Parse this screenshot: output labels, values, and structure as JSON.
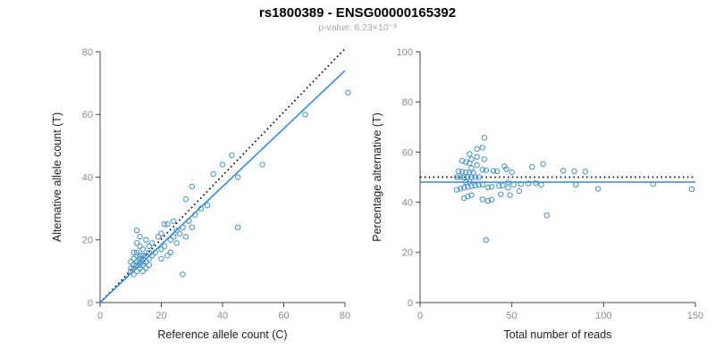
{
  "header": {
    "title": "rs1800389 - ENSG00000165392",
    "subtitle": "p-value: 6.23×10⁻³"
  },
  "colors": {
    "point": "#4292c6",
    "trend": "#2b8cee",
    "reference": "#000000",
    "axis": "#444444",
    "tick_text": "#8a8a8a",
    "axis_label": "#222222"
  },
  "chart_data": [
    {
      "type": "scatter",
      "name": "allele-count-scatter",
      "xlabel": "Reference allele count (C)",
      "ylabel": "Alternative allele count (T)",
      "xlim": [
        0,
        80
      ],
      "ylim": [
        0,
        80
      ],
      "xticks": [
        0,
        20,
        40,
        60,
        80
      ],
      "yticks": [
        0,
        20,
        40,
        60,
        80
      ],
      "points": [
        [
          10,
          10
        ],
        [
          10,
          11
        ],
        [
          10,
          13
        ],
        [
          11,
          9
        ],
        [
          11,
          11
        ],
        [
          11,
          12
        ],
        [
          11,
          14
        ],
        [
          11,
          16
        ],
        [
          12,
          10
        ],
        [
          12,
          12
        ],
        [
          12,
          13
        ],
        [
          12,
          15
        ],
        [
          12,
          16
        ],
        [
          12,
          19
        ],
        [
          12,
          23
        ],
        [
          13,
          11
        ],
        [
          13,
          12
        ],
        [
          13,
          13
        ],
        [
          13,
          14
        ],
        [
          13,
          15
        ],
        [
          13,
          18
        ],
        [
          13,
          21
        ],
        [
          14,
          10
        ],
        [
          14,
          12
        ],
        [
          14,
          13
        ],
        [
          14,
          14
        ],
        [
          14,
          15
        ],
        [
          14,
          17
        ],
        [
          15,
          11
        ],
        [
          15,
          13
        ],
        [
          15,
          15
        ],
        [
          15,
          20
        ],
        [
          16,
          12
        ],
        [
          16,
          14
        ],
        [
          16,
          16
        ],
        [
          16,
          18
        ],
        [
          17,
          15
        ],
        [
          17,
          19
        ],
        [
          18,
          16
        ],
        [
          19,
          21
        ],
        [
          20,
          14
        ],
        [
          20,
          17
        ],
        [
          20,
          22
        ],
        [
          21,
          18
        ],
        [
          21,
          25
        ],
        [
          22,
          15
        ],
        [
          22,
          25
        ],
        [
          23,
          16
        ],
        [
          23,
          20
        ],
        [
          24,
          21
        ],
        [
          24,
          26
        ],
        [
          25,
          19
        ],
        [
          25,
          23
        ],
        [
          26,
          22
        ],
        [
          27,
          9
        ],
        [
          27,
          24
        ],
        [
          28,
          21
        ],
        [
          28,
          33
        ],
        [
          29,
          26
        ],
        [
          30,
          24
        ],
        [
          30,
          37
        ],
        [
          31,
          28
        ],
        [
          33,
          30
        ],
        [
          35,
          31
        ],
        [
          37,
          41
        ],
        [
          40,
          44
        ],
        [
          43,
          47
        ],
        [
          45,
          24
        ],
        [
          45,
          40
        ],
        [
          53,
          44
        ],
        [
          67,
          60
        ],
        [
          81,
          67
        ]
      ],
      "lines": [
        {
          "name": "identity-line",
          "dashed": true,
          "color": "#000000",
          "points": [
            [
              0,
              0
            ],
            [
              80,
              81
            ]
          ]
        },
        {
          "name": "fit-line",
          "dashed": false,
          "color": "#2b8cee",
          "points": [
            [
              0,
              0
            ],
            [
              80,
              74
            ]
          ]
        }
      ]
    },
    {
      "type": "scatter",
      "name": "percentage-reads-scatter",
      "xlabel": "Total number of reads",
      "ylabel": "Percentage alternative (T)",
      "xlim": [
        0,
        150
      ],
      "ylim": [
        0,
        100
      ],
      "xticks": [
        0,
        50,
        100,
        150
      ],
      "yticks": [
        0,
        20,
        40,
        60,
        80,
        100
      ],
      "derive": "reads-percentage",
      "derive_note": "points derived from chart 0: x = C+T, y = 100·T/(C+T)",
      "lines": [
        {
          "name": "null-line",
          "dashed": true,
          "color": "#000000",
          "points": [
            [
              0,
              50
            ],
            [
              150,
              50
            ]
          ]
        },
        {
          "name": "fit-line",
          "dashed": false,
          "color": "#2b8cee",
          "points": [
            [
              0,
              48
            ],
            [
              150,
              48
            ]
          ]
        }
      ]
    }
  ]
}
